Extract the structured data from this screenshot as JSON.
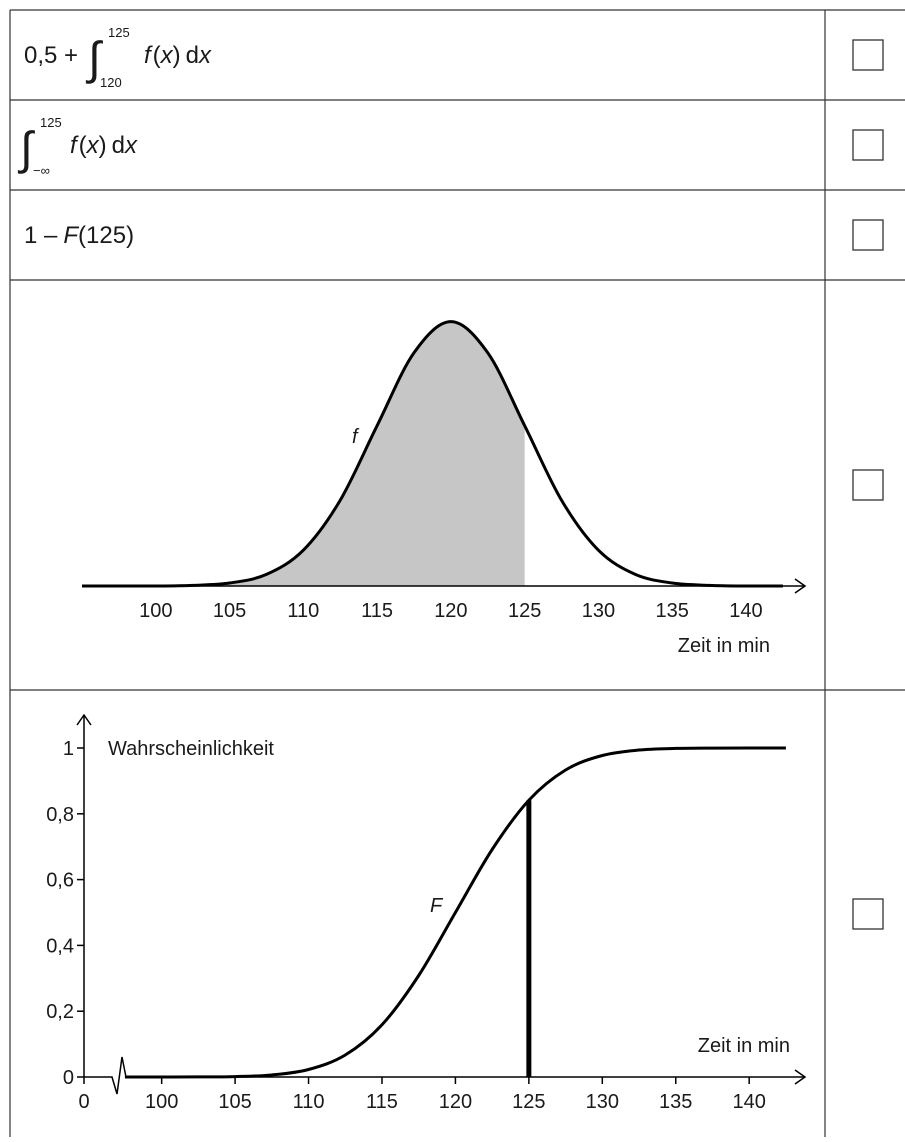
{
  "table": {
    "rows": [
      {
        "prefix": "0,5 +",
        "integral": "∫",
        "upper": "125",
        "lower": "120",
        "integrand": [
          "f",
          "(",
          "x",
          ")",
          "d",
          "x"
        ]
      },
      {
        "integral": "∫",
        "upper": "125",
        "lower": "−∞",
        "integrand": [
          "f",
          "(",
          "x",
          ")",
          "d",
          "x"
        ]
      },
      {
        "parts": [
          "1 –",
          "F",
          "(125)"
        ]
      }
    ]
  },
  "chart_data": [
    {
      "type": "area",
      "x": [
        95,
        97.5,
        100,
        102.5,
        105,
        107.5,
        110,
        112.5,
        115,
        117.5,
        120,
        122.5,
        125,
        127.5,
        130,
        132.5,
        135,
        137.5,
        140,
        142.5
      ],
      "values": [
        0,
        0,
        0,
        0.0002,
        0.0009,
        0.0035,
        0.0108,
        0.0259,
        0.0484,
        0.0704,
        0.0798,
        0.0704,
        0.0484,
        0.0259,
        0.0108,
        0.0035,
        0.0009,
        0.0002,
        0,
        0
      ],
      "xlim": [
        95,
        144
      ],
      "ylim": [
        0,
        0.08
      ],
      "xticks": [
        100,
        105,
        110,
        115,
        120,
        125,
        130,
        135,
        140
      ],
      "x_label": "Zeit in min",
      "curve_label": "f",
      "shade_until": 125,
      "color": "#000000",
      "shade_color": "#c6c6c6"
    },
    {
      "type": "line",
      "x": [
        97.5,
        100,
        102.5,
        105,
        107.5,
        110,
        112.5,
        115,
        117.5,
        120,
        122.5,
        125,
        127.5,
        130,
        132.5,
        135,
        137.5,
        140,
        142.5
      ],
      "values": [
        0,
        0,
        0.0002,
        0.0013,
        0.0062,
        0.0228,
        0.0668,
        0.1587,
        0.3085,
        0.5,
        0.6915,
        0.8413,
        0.9332,
        0.9772,
        0.9938,
        0.9987,
        0.9998,
        1,
        1
      ],
      "xlim": [
        97.3,
        143.8
      ],
      "ylim": [
        0,
        1
      ],
      "axis_break": true,
      "xticks": [
        0,
        100,
        105,
        110,
        115,
        120,
        125,
        130,
        135,
        140
      ],
      "yticks": [
        0,
        {
          "value": 0.2,
          "label": "0,2"
        },
        {
          "value": 0.4,
          "label": "0,4"
        },
        {
          "value": 0.6,
          "label": "0,6"
        },
        {
          "value": 0.8,
          "label": "0,8"
        },
        1
      ],
      "x_label": "Zeit in min",
      "y_label": "Wahrscheinlichkeit",
      "curve_label": "F",
      "highlight_x": 125,
      "color": "#000000"
    }
  ]
}
